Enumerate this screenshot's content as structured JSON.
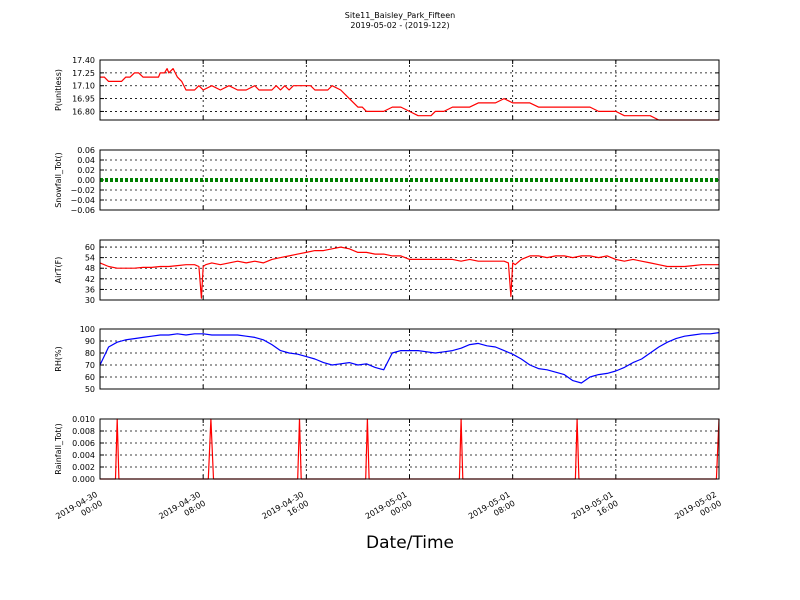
{
  "figure": {
    "title": "Site11_Baisley_Park_Fifteen",
    "subtitle": "2019-05-02 - (2019-122)",
    "xlabel": "Date/Time"
  },
  "chart_data": [
    {
      "type": "line",
      "ylabel": "P(unitless)",
      "ylim": [
        16.7,
        17.4
      ],
      "yticks": [
        "17.40",
        "17.25",
        "17.10",
        "16.95",
        "16.80"
      ],
      "ytick_values": [
        17.4,
        17.25,
        17.1,
        16.95,
        16.8
      ],
      "color": "#ff0000",
      "x": [
        0,
        0.5,
        1,
        1.5,
        2,
        2.5,
        3,
        3.5,
        4,
        4.5,
        5,
        5.5,
        6,
        6.3,
        6.5,
        6.8,
        7,
        7.3,
        7.5,
        7.8,
        8,
        8.5,
        9,
        9.5,
        10,
        10.5,
        11,
        11.5,
        12,
        13,
        14,
        15,
        16,
        17,
        18,
        18.5,
        19,
        19.5,
        20,
        20.5,
        21,
        21.5,
        22,
        22.5,
        23,
        23.5,
        24,
        24.5,
        25,
        25.5,
        26,
        26.5,
        27,
        28,
        29,
        30,
        30.5,
        31,
        32,
        33,
        34,
        35,
        36,
        37,
        38,
        38.5,
        39,
        39.5,
        40,
        41,
        42,
        43,
        44,
        45,
        46,
        47,
        48,
        49,
        50,
        51,
        52,
        53,
        54,
        55,
        56,
        57,
        58,
        59,
        60,
        61,
        62,
        63,
        64,
        65,
        66,
        67,
        68,
        69,
        70,
        71,
        72
      ],
      "values": [
        17.2,
        17.2,
        17.15,
        17.15,
        17.15,
        17.15,
        17.2,
        17.2,
        17.25,
        17.25,
        17.2,
        17.2,
        17.2,
        17.2,
        17.2,
        17.2,
        17.25,
        17.25,
        17.25,
        17.3,
        17.25,
        17.3,
        17.2,
        17.15,
        17.05,
        17.05,
        17.05,
        17.1,
        17.05,
        17.1,
        17.05,
        17.1,
        17.05,
        17.05,
        17.1,
        17.05,
        17.05,
        17.05,
        17.05,
        17.1,
        17.05,
        17.1,
        17.05,
        17.1,
        17.1,
        17.1,
        17.1,
        17.1,
        17.05,
        17.05,
        17.05,
        17.05,
        17.1,
        17.05,
        16.95,
        16.85,
        16.85,
        16.8,
        16.8,
        16.8,
        16.85,
        16.85,
        16.8,
        16.75,
        16.75,
        16.75,
        16.8,
        16.8,
        16.8,
        16.85,
        16.85,
        16.85,
        16.9,
        16.9,
        16.9,
        16.95,
        16.9,
        16.9,
        16.9,
        16.85,
        16.85,
        16.85,
        16.85,
        16.85,
        16.85,
        16.85,
        16.8,
        16.8,
        16.8,
        16.75,
        16.75,
        16.75,
        16.75,
        16.7,
        16.7,
        16.7,
        16.7,
        16.7,
        16.7,
        16.7,
        16.7
      ],
      "grid": true
    },
    {
      "type": "line",
      "ylabel": "Snowfall_Tot()",
      "ylim": [
        -0.06,
        0.06
      ],
      "yticks": [
        "0.06",
        "0.04",
        "0.02",
        "0.00",
        "−0.02",
        "−0.04",
        "−0.06"
      ],
      "ytick_values": [
        0.06,
        0.04,
        0.02,
        0.0,
        -0.02,
        -0.04,
        -0.06
      ],
      "color": "#008000",
      "x": [
        0,
        72
      ],
      "values": [
        0,
        0
      ],
      "grid": true
    },
    {
      "type": "line",
      "ylabel": "AirT(F)",
      "ylim": [
        30,
        64
      ],
      "yticks": [
        "60",
        "54",
        "48",
        "42",
        "36",
        "30"
      ],
      "ytick_values": [
        60,
        54,
        48,
        42,
        36,
        30
      ],
      "color": "#ff0000",
      "x": [
        0,
        1,
        2,
        3,
        4,
        5,
        6,
        7,
        8,
        9,
        10,
        11,
        11.5,
        11.8,
        12,
        12.3,
        13,
        14,
        15,
        16,
        17,
        18,
        19,
        20,
        21,
        22,
        23,
        24,
        25,
        26,
        27,
        28,
        29,
        30,
        31,
        32,
        33,
        34,
        35,
        36,
        37,
        38,
        39,
        40,
        41,
        42,
        43,
        44,
        45,
        46,
        47,
        47.5,
        47.8,
        48,
        48.3,
        49,
        50,
        51,
        52,
        53,
        54,
        55,
        56,
        57,
        58,
        59,
        60,
        61,
        62,
        63,
        64,
        65,
        66,
        67,
        68,
        69,
        70,
        71,
        72
      ],
      "values": [
        51,
        49,
        48,
        48,
        48,
        48.5,
        48.5,
        49,
        49,
        49.5,
        50,
        50,
        49,
        31,
        49,
        50,
        51,
        50,
        51,
        52,
        51,
        52,
        51,
        53,
        54,
        55,
        56,
        57,
        58,
        58,
        59,
        60,
        59,
        57,
        57,
        56,
        56,
        55,
        55,
        53,
        53,
        53,
        53,
        53,
        53,
        52,
        53,
        52,
        52,
        52,
        52,
        51,
        32,
        51,
        50,
        53,
        55,
        55,
        54,
        55,
        55,
        54,
        55,
        55,
        54,
        55,
        53,
        52,
        53,
        52,
        51,
        50,
        49,
        49,
        49,
        49.5,
        50,
        50,
        50
      ],
      "grid": true
    },
    {
      "type": "line",
      "ylabel": "RH(%)",
      "ylim": [
        50,
        100
      ],
      "yticks": [
        "100",
        "90",
        "80",
        "70",
        "60",
        "50"
      ],
      "ytick_values": [
        100,
        90,
        80,
        70,
        60,
        50
      ],
      "color": "#0000ff",
      "x": [
        0,
        1,
        2,
        3,
        4,
        5,
        6,
        7,
        8,
        9,
        10,
        11,
        12,
        13,
        14,
        15,
        16,
        17,
        18,
        19,
        20,
        21,
        22,
        23,
        24,
        25,
        26,
        27,
        28,
        29,
        30,
        31,
        32,
        33,
        34,
        35,
        36,
        37,
        38,
        39,
        40,
        41,
        42,
        43,
        44,
        45,
        46,
        47,
        48,
        49,
        50,
        51,
        52,
        53,
        54,
        55,
        56,
        57,
        58,
        59,
        60,
        61,
        62,
        63,
        64,
        65,
        66,
        67,
        68,
        69,
        70,
        71,
        72
      ],
      "values": [
        70,
        85,
        89,
        91,
        92,
        93,
        94,
        95,
        95,
        96,
        95,
        96,
        96,
        95,
        95,
        95,
        95,
        94,
        93,
        91,
        87,
        82,
        80,
        79,
        77,
        75,
        72,
        70,
        71,
        72,
        70,
        71,
        68,
        66,
        80,
        82,
        82,
        82,
        81,
        80,
        81,
        82,
        84,
        87,
        88,
        86,
        85,
        82,
        79,
        75,
        70,
        67,
        66,
        64,
        62,
        57,
        55,
        60,
        62,
        63,
        65,
        68,
        72,
        75,
        80,
        85,
        89,
        92,
        94,
        95,
        96,
        96,
        97
      ],
      "grid": true
    },
    {
      "type": "line",
      "ylabel": "Rainfall_Tot()",
      "ylim": [
        0,
        0.01
      ],
      "yticks": [
        "0.010",
        "0.008",
        "0.006",
        "0.004",
        "0.002",
        "0.000"
      ],
      "ytick_values": [
        0.01,
        0.008,
        0.006,
        0.004,
        0.002,
        0.0
      ],
      "color": "#ff0000",
      "x": [
        0,
        1.8,
        2.0,
        2.2,
        12.6,
        12.9,
        13.2,
        23.0,
        23.2,
        23.4,
        30.9,
        31.1,
        31.3,
        41.8,
        42.0,
        42.2,
        55.3,
        55.5,
        55.7,
        71.7,
        72
      ],
      "values": [
        0,
        0,
        0.01,
        0,
        0,
        0.01,
        0,
        0,
        0.01,
        0,
        0,
        0.01,
        0,
        0,
        0.01,
        0,
        0,
        0.01,
        0,
        0,
        0.01
      ],
      "grid": true
    }
  ],
  "xaxis": {
    "range": [
      0,
      72
    ],
    "tick_values": [
      0,
      12,
      24,
      36,
      48,
      60,
      72
    ],
    "tick_labels": [
      [
        "2019-04-30",
        "00:00"
      ],
      [
        "2019-04-30",
        "08:00"
      ],
      [
        "2019-04-30",
        "16:00"
      ],
      [
        "2019-05-01",
        "00:00"
      ],
      [
        "2019-05-01",
        "08:00"
      ],
      [
        "2019-05-01",
        "16:00"
      ],
      [
        "2019-05-02",
        "00:00"
      ]
    ]
  }
}
